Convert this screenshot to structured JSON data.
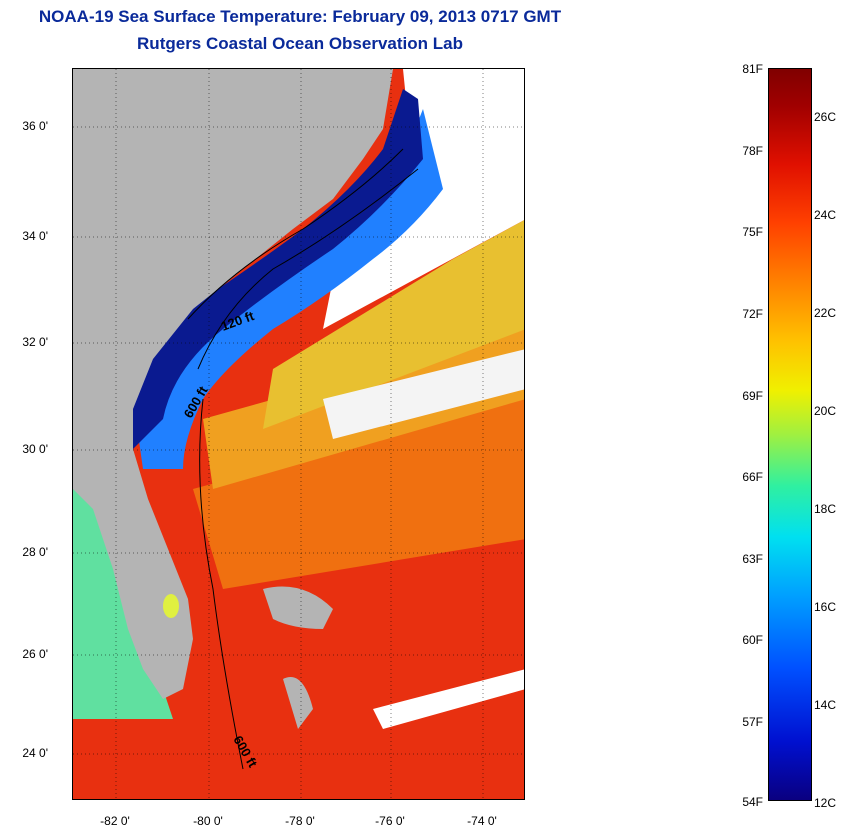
{
  "header": {
    "title": "NOAA-19 Sea Surface Temperature:  February 09, 2013 0717 GMT",
    "subtitle": "Rutgers Coastal Ocean Observation Lab"
  },
  "map": {
    "lat_labels": [
      "36 0'",
      "34 0'",
      "32 0'",
      "30 0'",
      "28 0'",
      "26 0'",
      "24 0'"
    ],
    "lon_labels": [
      "-82 0'",
      "-80 0'",
      "-78 0'",
      "-76 0'",
      "-74 0'"
    ],
    "contour_labels": [
      "120 ft",
      "600 ft",
      "600 ft"
    ],
    "colors": {
      "land": "#b4b4b4",
      "cloud": "#ffffff",
      "cold": "#0a1a90",
      "warm": "#e82808",
      "title": "#0a2a9a"
    }
  },
  "colorbar": {
    "fahrenheit_labels": [
      "81F",
      "78F",
      "75F",
      "72F",
      "69F",
      "66F",
      "63F",
      "60F",
      "57F",
      "54F"
    ],
    "celsius_labels": [
      "26C",
      "24C",
      "22C",
      "20C",
      "18C",
      "16C",
      "14C",
      "12C"
    ],
    "range_f": [
      54,
      81
    ],
    "range_c": [
      12,
      27
    ]
  }
}
